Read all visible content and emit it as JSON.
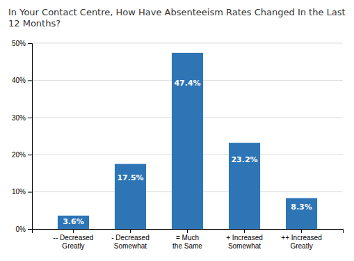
{
  "chart_data": {
    "type": "bar",
    "title": "In Your Contact Centre, How Have Absenteeism Rates Changed In the Last 12 Months?",
    "categories": [
      "-- Decreased\nGreatly",
      "- Decreased\nSomewhat",
      "= Much\nthe Same",
      "+ Increased\nSomewhat",
      "++ Increased\nGreatly"
    ],
    "values": [
      3.6,
      17.5,
      47.4,
      23.2,
      8.3
    ],
    "value_labels": [
      "3.6%",
      "17.5%",
      "47.4%",
      "23.2%",
      "8.3%"
    ],
    "data_labels": true,
    "color": "#2E75B6",
    "ylim": [
      0,
      50
    ],
    "yticks": [
      {
        "value": 0,
        "label": "0%"
      },
      {
        "value": 10,
        "label": "10%"
      },
      {
        "value": 20,
        "label": "20%"
      },
      {
        "value": 30,
        "label": "30%"
      },
      {
        "value": 40,
        "label": "40%"
      },
      {
        "value": 50,
        "label": "50%"
      }
    ],
    "grid": true
  }
}
